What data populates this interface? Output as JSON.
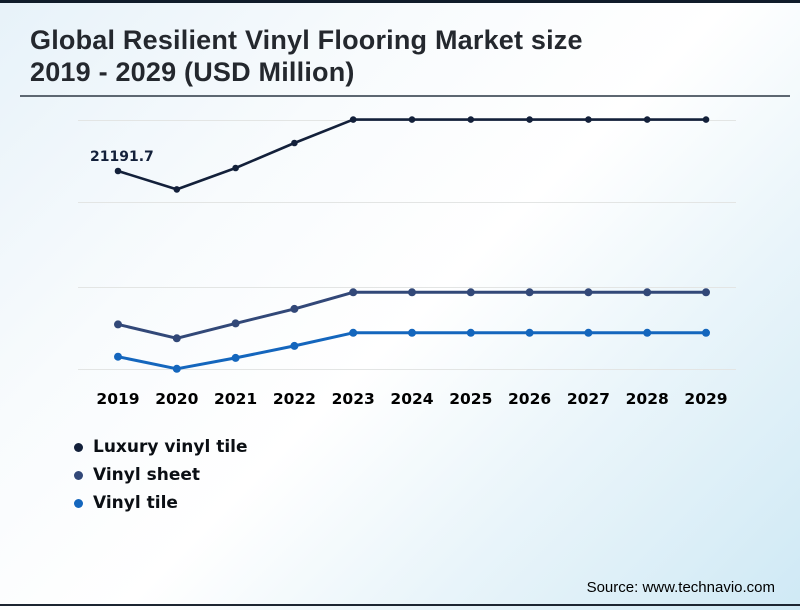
{
  "page": {
    "title_line1": "Global Resilient Vinyl Flooring Market size",
    "title_line2": "2019 - 2029 (USD Million)",
    "source": "Source: www.technavio.com"
  },
  "colors": {
    "accent_top_bar": "#101c2a",
    "title_text": "#24282e",
    "title_rule": "#5d6771",
    "gridline": "#e3e5e4",
    "axis_text": "#000000",
    "legend_text": "#0b0f14",
    "bottom_rule": "#1c2531"
  },
  "chart_data": {
    "type": "line",
    "title": "Global Resilient Vinyl Flooring Market size 2019 - 2029 (USD Million)",
    "categories": [
      "2019",
      "2020",
      "2021",
      "2022",
      "2023",
      "2024",
      "2025",
      "2026",
      "2027",
      "2028",
      "2029"
    ],
    "series": [
      {
        "name": "Luxury vinyl tile",
        "color": "#13203a",
        "values": [
          21191.7,
          20080,
          21370,
          22880,
          24290,
          24290,
          24290,
          24290,
          24290,
          24290,
          24290
        ]
      },
      {
        "name": "Vinyl sheet",
        "color": "#324878",
        "values": [
          11950,
          11110,
          12010,
          12880,
          13880,
          13880,
          13880,
          13880,
          13880,
          13880,
          13880
        ]
      },
      {
        "name": "Vinyl tile",
        "color": "#1466bd",
        "values": [
          10000,
          9270,
          9930,
          10650,
          11440,
          11440,
          11440,
          11440,
          11440,
          11440,
          11440
        ]
      }
    ],
    "annotations": [
      {
        "series": "Luxury vinyl tile",
        "category": "2019",
        "text": "21191.7"
      }
    ],
    "xlabel": "",
    "ylabel": "",
    "ylim": [
      6790,
      25470
    ],
    "grid": "horizontal",
    "legend_position": "bottom-left",
    "y_axis_visible": false
  }
}
